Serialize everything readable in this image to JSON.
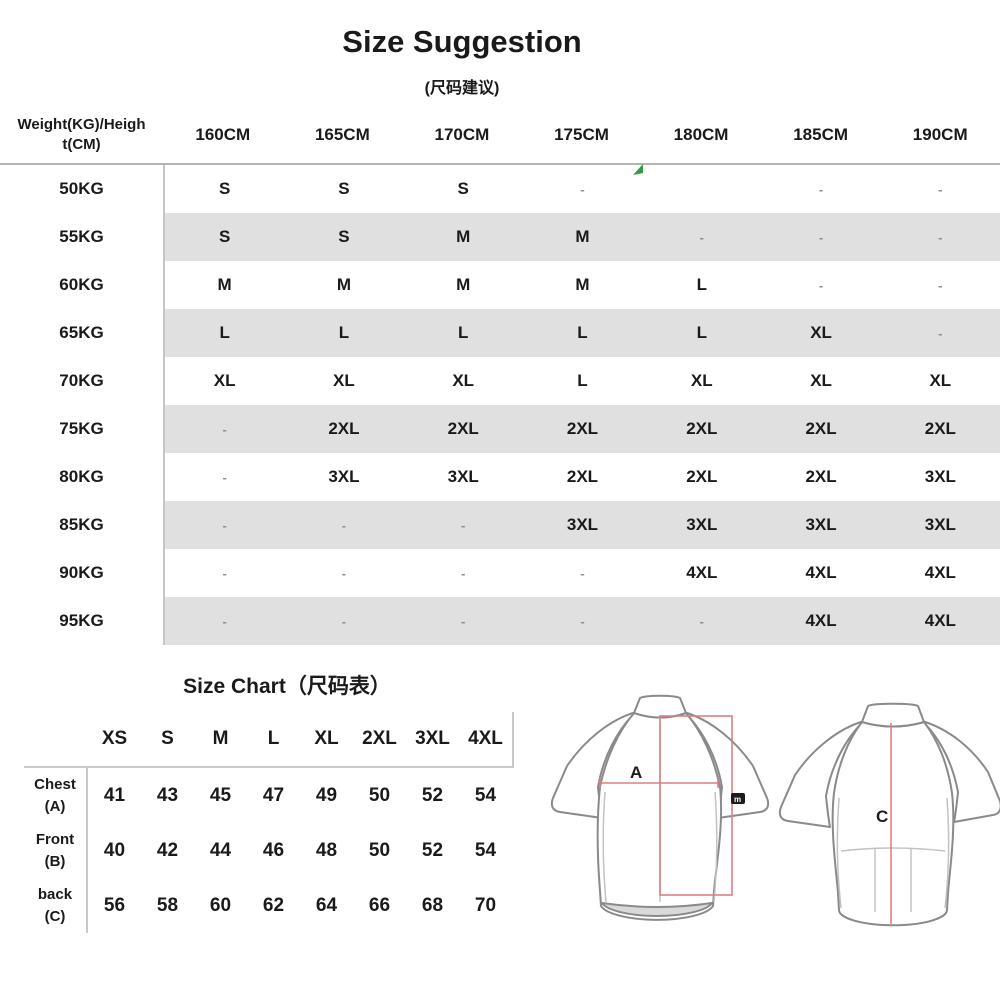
{
  "page": {
    "title": "Size Suggestion",
    "subtitle": "(尺码建议)"
  },
  "suggestion_table": {
    "corner_header_line1": "Weight(KG)/Heigh",
    "corner_header_line2": "t(CM)",
    "columns": [
      "160CM",
      "165CM",
      "170CM",
      "175CM",
      "180CM",
      "185CM",
      "190CM"
    ],
    "rows": [
      {
        "weight": "50KG",
        "values": [
          "S",
          "S",
          "S",
          "-",
          "",
          "-",
          "-"
        ]
      },
      {
        "weight": "55KG",
        "values": [
          "S",
          "S",
          "M",
          "M",
          "-",
          "-",
          "-"
        ]
      },
      {
        "weight": "60KG",
        "values": [
          "M",
          "M",
          "M",
          "M",
          "L",
          "-",
          "-"
        ]
      },
      {
        "weight": "65KG",
        "values": [
          "L",
          "L",
          "L",
          "L",
          "L",
          "XL",
          "-"
        ]
      },
      {
        "weight": "70KG",
        "values": [
          "XL",
          "XL",
          "XL",
          "L",
          "XL",
          "XL",
          "XL"
        ]
      },
      {
        "weight": "75KG",
        "values": [
          "-",
          "2XL",
          "2XL",
          "2XL",
          "2XL",
          "2XL",
          "2XL"
        ]
      },
      {
        "weight": "80KG",
        "values": [
          "-",
          "3XL",
          "3XL",
          "2XL",
          "2XL",
          "2XL",
          "3XL"
        ]
      },
      {
        "weight": "85KG",
        "values": [
          "-",
          "-",
          "-",
          "3XL",
          "3XL",
          "3XL",
          "3XL"
        ]
      },
      {
        "weight": "90KG",
        "values": [
          "-",
          "-",
          "-",
          "-",
          "4XL",
          "4XL",
          "4XL"
        ]
      },
      {
        "weight": "95KG",
        "values": [
          "-",
          "-",
          "-",
          "-",
          "-",
          "4XL",
          "4XL"
        ]
      }
    ]
  },
  "size_chart": {
    "title": "Size Chart（尺码表）",
    "columns": [
      "XS",
      "S",
      "M",
      "L",
      "XL",
      "2XL",
      "3XL",
      "4XL"
    ],
    "rows": [
      {
        "label_line1": "Chest",
        "label_line2": "(A)",
        "values": [
          41,
          43,
          45,
          47,
          49,
          50,
          52,
          54
        ]
      },
      {
        "label_line1": "Front",
        "label_line2": "(B)",
        "values": [
          40,
          42,
          44,
          46,
          48,
          50,
          52,
          54
        ]
      },
      {
        "label_line1": "back",
        "label_line2": "(C)",
        "values": [
          56,
          58,
          60,
          62,
          64,
          66,
          68,
          70
        ]
      }
    ]
  },
  "diagram": {
    "front_label": "A",
    "back_label": "C",
    "sleeve_logo": "m"
  },
  "colors": {
    "text": "#1a1a1a",
    "stripe": "#e0e0e0",
    "divider": "#c6c6c6",
    "headerline": "#b3b3b3",
    "chartline": "#c9c9c9",
    "dash": "#8f8f8f",
    "redline": "#dc8080",
    "marker": "#2f9e41",
    "outline": "#8a8a8a",
    "seam": "#c2c2c2",
    "hemfill": "#d9d9d9"
  }
}
